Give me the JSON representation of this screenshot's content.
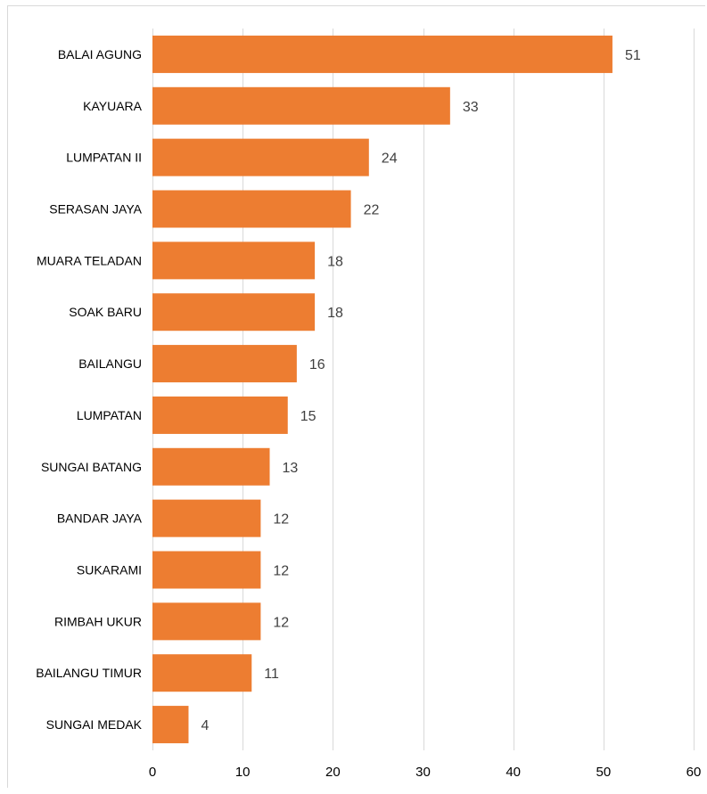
{
  "chart_data": {
    "type": "bar",
    "orientation": "horizontal",
    "title": "",
    "xlabel": "",
    "ylabel": "",
    "categories": [
      "BALAI AGUNG",
      "KAYUARA",
      "LUMPATAN II",
      "SERASAN JAYA",
      "MUARA TELADAN",
      "SOAK BARU",
      "BAILANGU",
      "LUMPATAN",
      "SUNGAI BATANG",
      "BANDAR JAYA",
      "SUKARAMI",
      "RIMBAH UKUR",
      "BAILANGU TIMUR",
      "SUNGAI MEDAK"
    ],
    "values": [
      51,
      33,
      24,
      22,
      18,
      18,
      16,
      15,
      13,
      12,
      12,
      12,
      11,
      4
    ],
    "xlim": [
      0,
      60
    ],
    "xticks": [
      0,
      10,
      20,
      30,
      40,
      50,
      60
    ],
    "grid": true,
    "legend": "none",
    "data_labels": true,
    "colors": {
      "bar": "#ed7d31",
      "grid": "#d9d9d9",
      "text": "#000000",
      "data_label": "#404040",
      "tick_label": "#000000"
    }
  }
}
